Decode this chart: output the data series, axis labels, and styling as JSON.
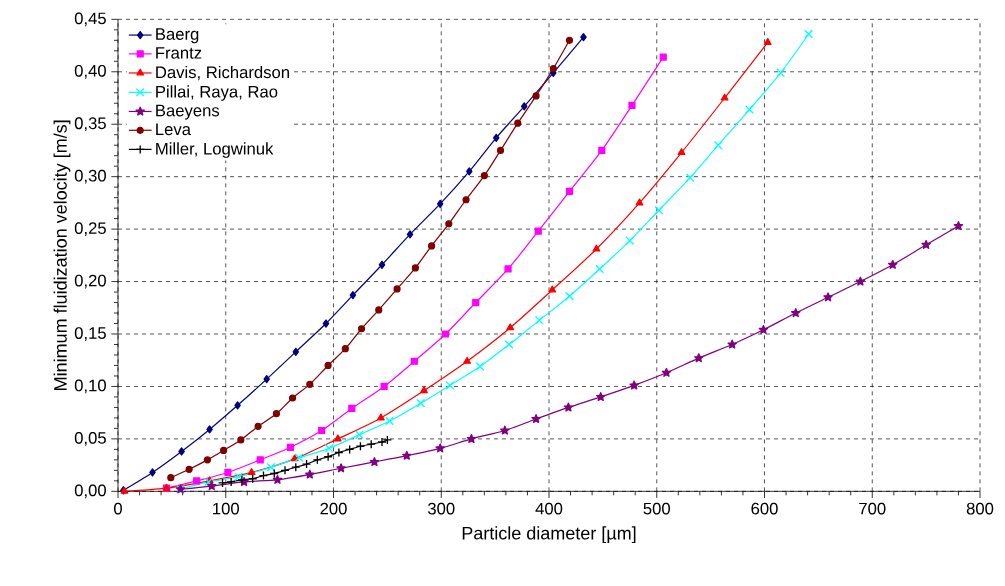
{
  "chart_data": {
    "type": "line",
    "xlabel": "Particle diameter [µm]",
    "ylabel": "Minimum fluidization velocity [m/s]",
    "xlim": [
      0,
      800
    ],
    "xticks": [
      0,
      100,
      200,
      300,
      400,
      500,
      600,
      700,
      800
    ],
    "ylim": [
      0,
      0.45
    ],
    "yticks": [
      {
        "value": 0,
        "label": "0,00"
      },
      {
        "value": 0.05,
        "label": "0,05"
      },
      {
        "value": 0.1,
        "label": "0,10"
      },
      {
        "value": 0.15,
        "label": "0,15"
      },
      {
        "value": 0.2,
        "label": "0,20"
      },
      {
        "value": 0.25,
        "label": "0,25"
      },
      {
        "value": 0.3,
        "label": "0,30"
      },
      {
        "value": 0.35,
        "label": "0,35"
      },
      {
        "value": 0.4,
        "label": "0,40"
      },
      {
        "value": 0.45,
        "label": "0,45"
      }
    ],
    "grid": true,
    "legend": "top left",
    "line_style": "solid",
    "series": [
      {
        "name": "Baerg",
        "color": "#000080",
        "marker": "diamond",
        "x": [
          5,
          32,
          59,
          85,
          111,
          138,
          165,
          193,
          218,
          245,
          271,
          299,
          326,
          351,
          377,
          404,
          432
        ],
        "values": [
          0.001,
          0.018,
          0.038,
          0.059,
          0.082,
          0.107,
          0.133,
          0.16,
          0.187,
          0.216,
          0.245,
          0.274,
          0.305,
          0.337,
          0.367,
          0.399,
          0.433
        ]
      },
      {
        "name": "Frantz",
        "color": "#ff00ff",
        "marker": "square",
        "x": [
          45,
          73,
          102,
          132,
          160,
          189,
          217,
          247,
          275,
          304,
          332,
          362,
          390,
          419,
          449,
          477,
          506
        ],
        "values": [
          0.003,
          0.01,
          0.018,
          0.03,
          0.042,
          0.058,
          0.079,
          0.1,
          0.124,
          0.15,
          0.18,
          0.212,
          0.248,
          0.286,
          0.325,
          0.368,
          0.414
        ]
      },
      {
        "name": "Davis, Richardson",
        "color": "#ff0000",
        "marker": "triangle",
        "x": [
          6,
          45,
          85,
          124,
          164,
          204,
          244,
          284,
          324,
          364,
          403,
          444,
          484,
          523,
          563,
          603
        ],
        "values": [
          0.0,
          0.003,
          0.01,
          0.018,
          0.031,
          0.05,
          0.07,
          0.096,
          0.124,
          0.156,
          0.192,
          0.231,
          0.275,
          0.323,
          0.375,
          0.428
        ]
      },
      {
        "name": "Pillai, Raya, Rao",
        "color": "#00ffff",
        "marker": "cross",
        "x": [
          58,
          84,
          112,
          142,
          168,
          196,
          224,
          252,
          281,
          308,
          336,
          363,
          391,
          419,
          447,
          475,
          502,
          531,
          557,
          586,
          615,
          641
        ],
        "values": [
          0.002,
          0.009,
          0.014,
          0.023,
          0.032,
          0.041,
          0.054,
          0.067,
          0.084,
          0.101,
          0.119,
          0.14,
          0.163,
          0.186,
          0.212,
          0.239,
          0.268,
          0.299,
          0.33,
          0.364,
          0.399,
          0.436
        ]
      },
      {
        "name": "Baeyens",
        "color": "#800080",
        "marker": "star",
        "x": [
          58,
          87,
          117,
          148,
          178,
          207,
          238,
          268,
          299,
          328,
          359,
          388,
          418,
          448,
          479,
          509,
          539,
          570,
          599,
          629,
          659,
          689,
          719,
          750,
          780
        ],
        "values": [
          0.002,
          0.005,
          0.009,
          0.011,
          0.016,
          0.022,
          0.028,
          0.034,
          0.041,
          0.05,
          0.058,
          0.069,
          0.08,
          0.09,
          0.101,
          0.113,
          0.127,
          0.14,
          0.154,
          0.17,
          0.185,
          0.2,
          0.216,
          0.235,
          0.253
        ]
      },
      {
        "name": "Leva",
        "color": "#800000",
        "marker": "circle",
        "x": [
          49,
          66,
          83,
          98,
          114,
          130,
          147,
          162,
          178,
          195,
          211,
          226,
          242,
          259,
          276,
          291,
          307,
          323,
          340,
          355,
          371,
          388,
          404,
          419
        ],
        "values": [
          0.013,
          0.021,
          0.03,
          0.039,
          0.049,
          0.062,
          0.074,
          0.089,
          0.102,
          0.12,
          0.136,
          0.155,
          0.173,
          0.193,
          0.213,
          0.234,
          0.255,
          0.278,
          0.301,
          0.325,
          0.351,
          0.377,
          0.403,
          0.43
        ]
      },
      {
        "name": "Miller, Logwinuk",
        "color": "#000000",
        "marker": "plus",
        "x": [
          97,
          105,
          115,
          125,
          135,
          145,
          155,
          165,
          175,
          185,
          195,
          205,
          215,
          225,
          235,
          245,
          250
        ],
        "values": [
          0.008,
          0.009,
          0.011,
          0.012,
          0.015,
          0.017,
          0.02,
          0.023,
          0.026,
          0.03,
          0.033,
          0.037,
          0.04,
          0.043,
          0.045,
          0.047,
          0.049
        ]
      }
    ]
  }
}
